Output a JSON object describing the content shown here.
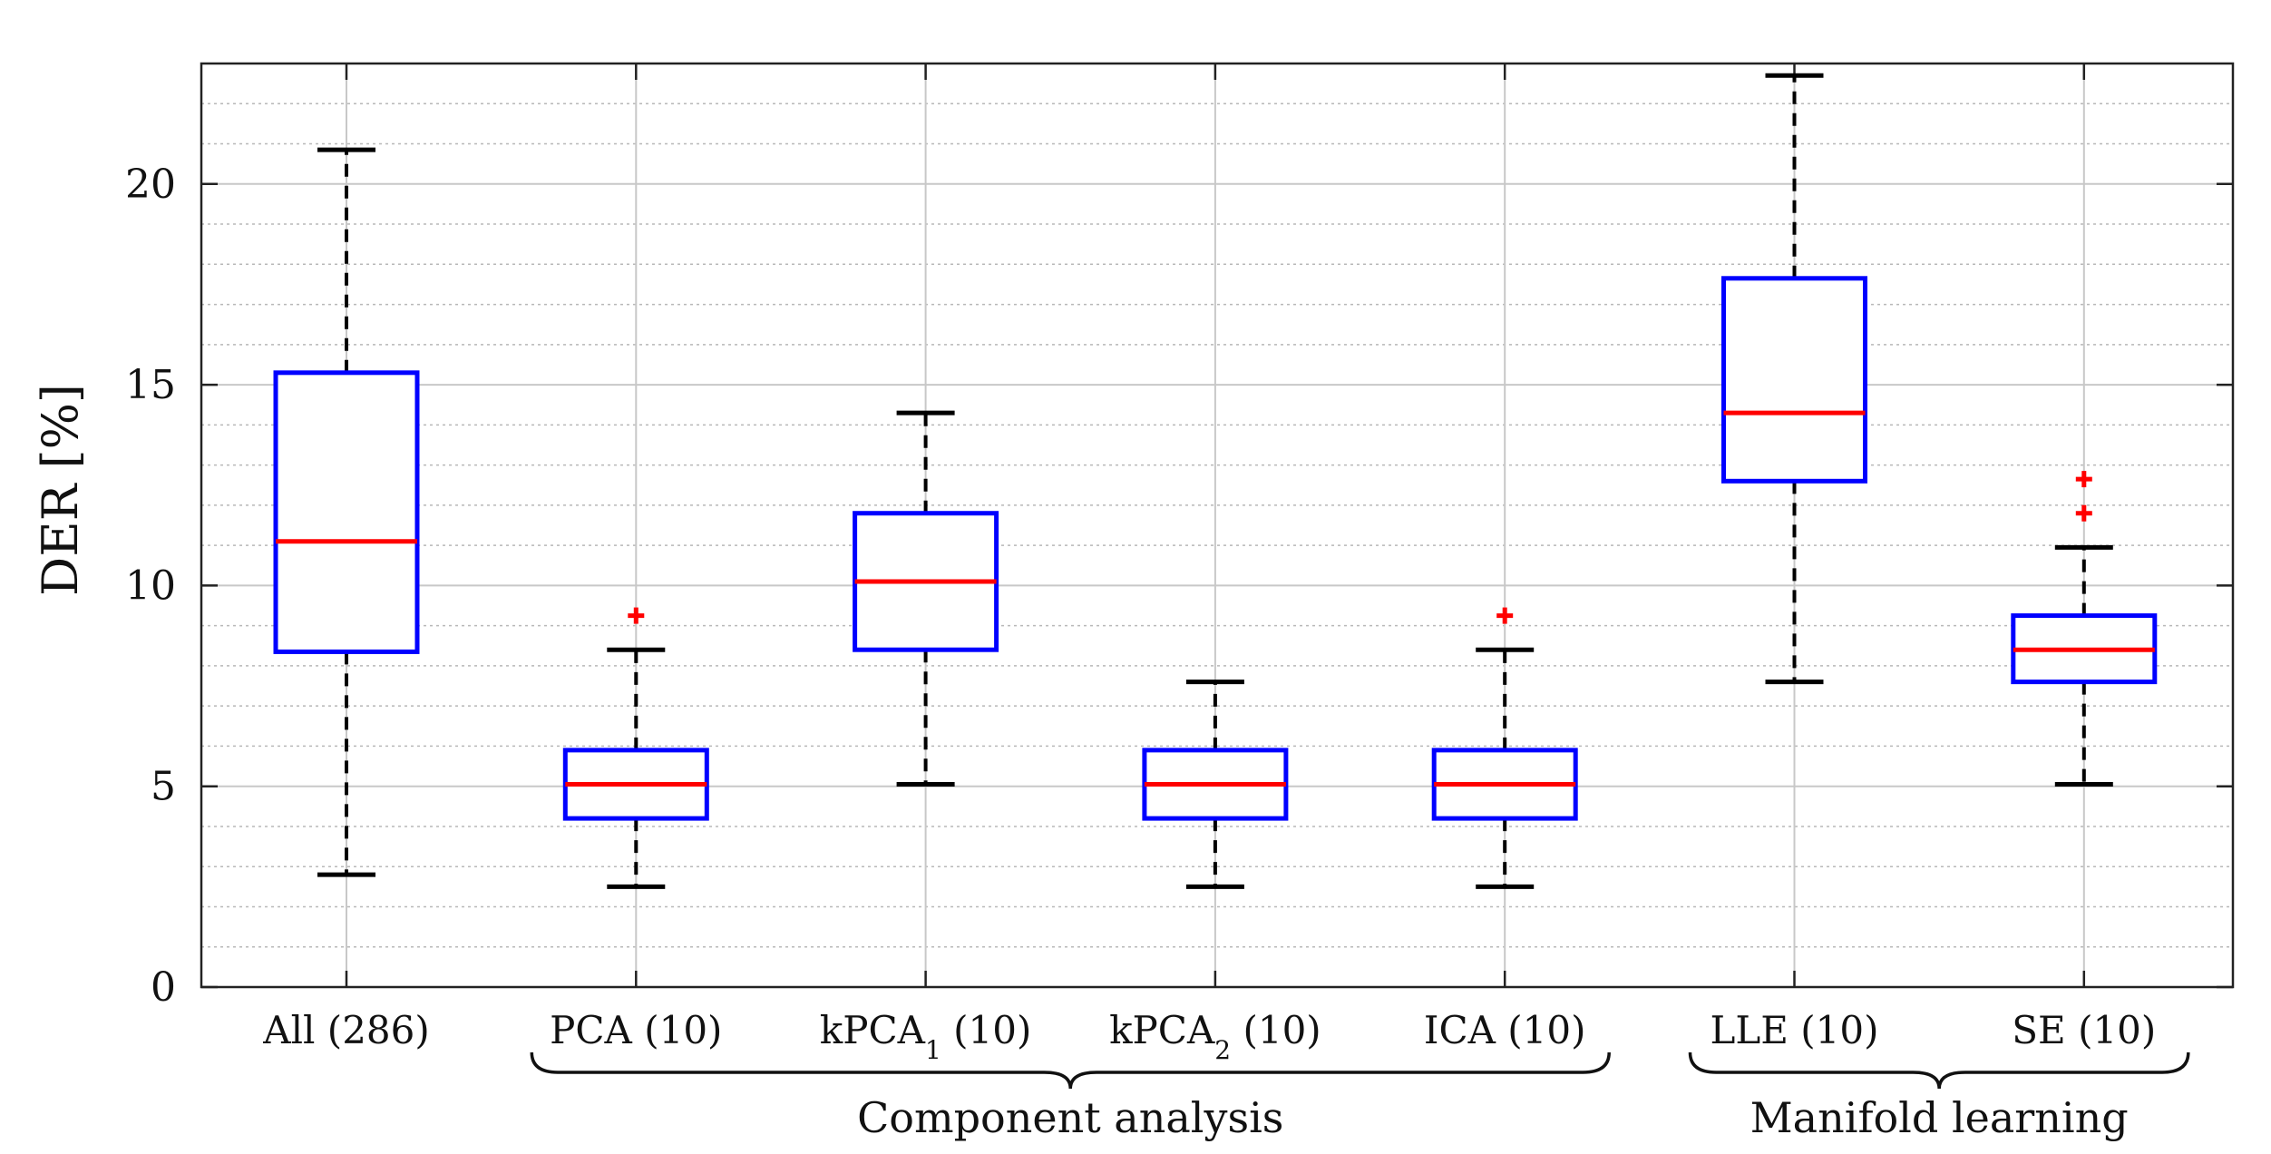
{
  "chart_data": {
    "type": "boxplot",
    "ylabel": "DER [%]",
    "ylim": [
      0,
      23
    ],
    "yticks": [
      0,
      5,
      10,
      15,
      20
    ],
    "grid": true,
    "minor_grid": true,
    "colors": {
      "box": "#0000ff",
      "median": "#ff0000",
      "whisker": "#000000",
      "outlier": "#ff0000"
    },
    "categories": [
      {
        "label": "All (286)",
        "name": "All",
        "sub": "",
        "count": "(286)"
      },
      {
        "label": "PCA (10)",
        "name": "PCA",
        "sub": "",
        "count": "(10)"
      },
      {
        "label": "kPCA1 (10)",
        "name": "kPCA",
        "sub": "1",
        "count": "(10)"
      },
      {
        "label": "kPCA2 (10)",
        "name": "kPCA",
        "sub": "2",
        "count": "(10)"
      },
      {
        "label": "ICA (10)",
        "name": "ICA",
        "sub": "",
        "count": "(10)"
      },
      {
        "label": "LLE (10)",
        "name": "LLE",
        "sub": "",
        "count": "(10)"
      },
      {
        "label": "SE (10)",
        "name": "SE",
        "sub": "",
        "count": "(10)"
      }
    ],
    "boxes": [
      {
        "whisker_low": 2.8,
        "q1": 8.35,
        "median": 11.1,
        "q3": 15.3,
        "whisker_high": 20.85,
        "outliers": []
      },
      {
        "whisker_low": 2.5,
        "q1": 4.2,
        "median": 5.05,
        "q3": 5.9,
        "whisker_high": 8.4,
        "outliers": [
          9.25
        ]
      },
      {
        "whisker_low": 5.05,
        "q1": 8.4,
        "median": 10.1,
        "q3": 11.8,
        "whisker_high": 14.3,
        "outliers": []
      },
      {
        "whisker_low": 2.5,
        "q1": 4.2,
        "median": 5.05,
        "q3": 5.9,
        "whisker_high": 7.6,
        "outliers": []
      },
      {
        "whisker_low": 2.5,
        "q1": 4.2,
        "median": 5.05,
        "q3": 5.9,
        "whisker_high": 8.4,
        "outliers": [
          9.25
        ]
      },
      {
        "whisker_low": 7.6,
        "q1": 12.6,
        "median": 14.3,
        "q3": 17.65,
        "whisker_high": 22.7,
        "outliers": []
      },
      {
        "whisker_low": 5.05,
        "q1": 7.6,
        "median": 8.4,
        "q3": 9.25,
        "whisker_high": 10.95,
        "outliers": [
          11.8,
          12.65
        ]
      }
    ],
    "groups": [
      {
        "label": "Component analysis",
        "from": 1,
        "to": 4
      },
      {
        "label": "Manifold learning",
        "from": 5,
        "to": 6
      }
    ]
  }
}
